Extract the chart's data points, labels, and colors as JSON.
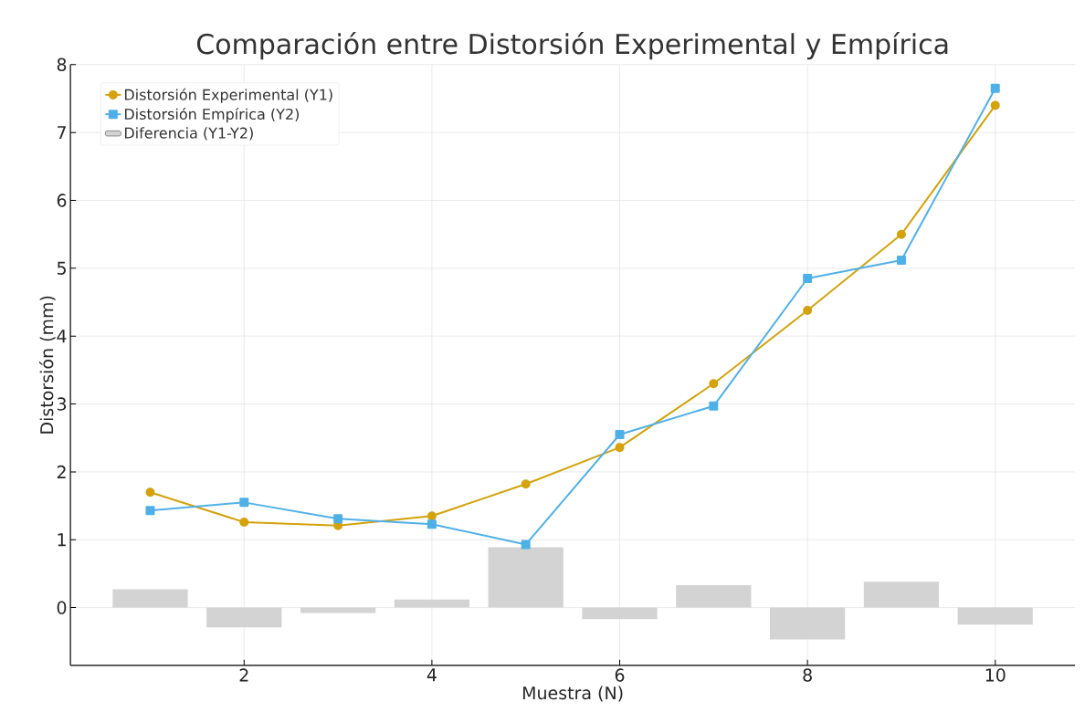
{
  "chart_data": {
    "type": "line",
    "title": "Comparación entre Distorsión Experimental y Empírica",
    "xlabel": "Muestra (N)",
    "ylabel": "Distorsión (mm)",
    "x": [
      1,
      2,
      3,
      4,
      5,
      6,
      7,
      8,
      9,
      10
    ],
    "series": [
      {
        "name": "Distorsión Experimental (Y1)",
        "color": "#d4a20c",
        "marker": "circle",
        "values": [
          1.7,
          1.26,
          1.21,
          1.35,
          1.82,
          2.36,
          3.3,
          4.38,
          5.5,
          7.4
        ]
      },
      {
        "name": "Distorsión Empírica (Y2)",
        "color": "#4fb0e8",
        "marker": "square",
        "values": [
          1.43,
          1.55,
          1.31,
          1.23,
          0.93,
          2.55,
          2.97,
          4.85,
          5.12,
          7.65
        ]
      },
      {
        "name": "Diferencia (Y1-Y2)",
        "type": "bar",
        "color": "#d3d3d3",
        "values": [
          0.27,
          -0.29,
          -0.08,
          0.12,
          0.89,
          -0.17,
          0.33,
          -0.47,
          0.38,
          -0.25
        ]
      }
    ],
    "xlim": [
      0.15,
      10.85
    ],
    "ylim": [
      -0.85,
      8.0
    ],
    "xticks": [
      2,
      4,
      6,
      8,
      10
    ],
    "yticks": [
      0,
      1,
      2,
      3,
      4,
      5,
      6,
      7,
      8
    ],
    "grid": true,
    "legend": "top left"
  }
}
